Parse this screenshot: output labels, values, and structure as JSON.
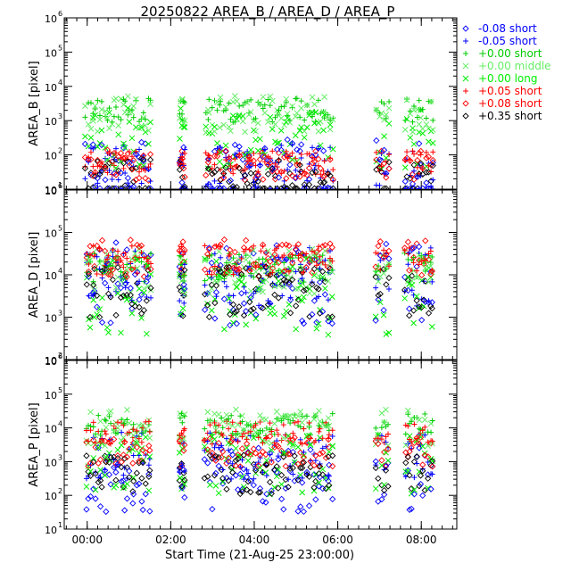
{
  "chart_data": {
    "type": "scatter",
    "title": "20250822 AREA_B / AREA_D / AREA_P",
    "xlabel": "Start Time (21-Aug-25 23:00:00)",
    "x_unit": "hours since 21-Aug-25 23:00:00",
    "xlim": [
      0.45,
      9.85
    ],
    "x_ticks": [
      {
        "value": 1,
        "label": "00:00"
      },
      {
        "value": 3,
        "label": "02:00"
      },
      {
        "value": 5,
        "label": "04:00"
      },
      {
        "value": 7,
        "label": "06:00"
      },
      {
        "value": 9,
        "label": "08:00"
      }
    ],
    "y_scale": "log",
    "grid": false,
    "legend_position": "right, outside top",
    "legend": [
      {
        "label": "-0.08 short",
        "marker": "diamond",
        "color": "#0000ff"
      },
      {
        "label": "-0.05 short",
        "marker": "plus",
        "color": "#0000ff"
      },
      {
        "label": "+0.00 short",
        "marker": "plus",
        "color": "#00cc00"
      },
      {
        "label": "+0.00 middle",
        "marker": "cross",
        "color": "#66ee66"
      },
      {
        "label": "+0.00 long",
        "marker": "cross",
        "color": "#00ee00"
      },
      {
        "label": "+0.05 short",
        "marker": "plus",
        "color": "#ff0000"
      },
      {
        "label": "+0.08 short",
        "marker": "diamond",
        "color": "#ff0000"
      },
      {
        "label": "+0.35 short",
        "marker": "diamond",
        "color": "#000000"
      }
    ],
    "segments_hours": [
      [
        0.95,
        2.55
      ],
      [
        3.2,
        3.35
      ],
      [
        3.8,
        6.9
      ],
      [
        7.9,
        8.25
      ],
      [
        8.6,
        9.3
      ]
    ],
    "panels": [
      {
        "ylabel": "AREA_B [pixel]",
        "ylim": [
          10,
          1000000
        ],
        "y_ticks": [
          {
            "value": 10,
            "label": "10",
            "exp": "1"
          },
          {
            "value": 100,
            "label": "10",
            "exp": "2"
          },
          {
            "value": 1000,
            "label": "10",
            "exp": "3"
          },
          {
            "value": 10000,
            "label": "10",
            "exp": "4"
          },
          {
            "value": 100000,
            "label": "10",
            "exp": "5"
          },
          {
            "value": 1000000,
            "label": "10",
            "exp": "6"
          }
        ],
        "levels": {
          "short_neg08": 30,
          "short_neg05": 40,
          "short_0": 2000,
          "middle": 1500,
          "long": 300,
          "short_pos05": 60,
          "short_pos08": 50,
          "short_pos35": 20
        }
      },
      {
        "ylabel": "AREA_D [pixel]",
        "ylim": [
          100,
          1000000
        ],
        "y_ticks": [
          {
            "value": 100,
            "label": "10",
            "exp": "2"
          },
          {
            "value": 1000,
            "label": "10",
            "exp": "3"
          },
          {
            "value": 10000,
            "label": "10",
            "exp": "4"
          },
          {
            "value": 100000,
            "label": "10",
            "exp": "5"
          },
          {
            "value": 1000000,
            "label": "10",
            "exp": "6"
          }
        ],
        "levels": {
          "short_neg08": 6000,
          "short_neg05": 9000,
          "short_0": 15000,
          "middle": 12000,
          "long": 3000,
          "short_pos05": 22000,
          "short_pos08": 25000,
          "short_pos35": 4000
        }
      },
      {
        "ylabel": "AREA_P [pixel]",
        "ylim": [
          10,
          1000000
        ],
        "y_ticks": [
          {
            "value": 10,
            "label": "10",
            "exp": "1"
          },
          {
            "value": 100,
            "label": "10",
            "exp": "2"
          },
          {
            "value": 1000,
            "label": "10",
            "exp": "3"
          },
          {
            "value": 10000,
            "label": "10",
            "exp": "4"
          },
          {
            "value": 100000,
            "label": "10",
            "exp": "5"
          },
          {
            "value": 1000000,
            "label": "10",
            "exp": "6"
          }
        ],
        "levels": {
          "short_neg08": 300,
          "short_neg05": 1500,
          "short_0": 12000,
          "middle": 10000,
          "long": 800,
          "short_pos05": 7000,
          "short_pos08": 2000,
          "short_pos35": 400
        }
      }
    ]
  }
}
